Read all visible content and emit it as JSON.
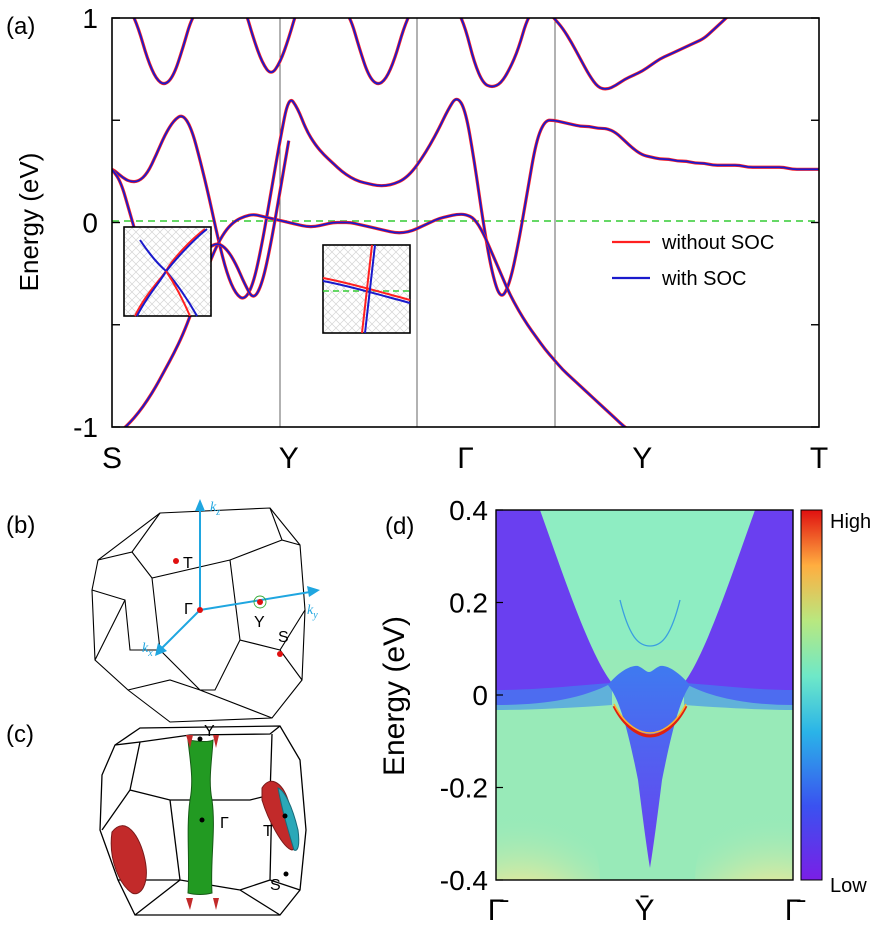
{
  "panel_labels": {
    "a": "(a)",
    "b": "(b)",
    "c": "(c)",
    "d": "(d)"
  },
  "colors": {
    "without_soc": "#ff2020",
    "with_soc": "#1a1acc",
    "fermi": "#33cc33",
    "axis_blue": "#1fa6e0",
    "hp_red": "#e01010",
    "fs_green": "#229a22",
    "fs_red": "#c22a2a",
    "fs_cyan": "#2aa8b8"
  },
  "chart_data": [
    {
      "panel": "a",
      "type": "line",
      "ylabel": "Energy (eV)",
      "ylim": [
        -1,
        1
      ],
      "yticks": [
        "1",
        "0",
        "-1"
      ],
      "kpath": [
        "S",
        "Y",
        "Γ",
        "Y",
        "T"
      ],
      "fermi_level": 0,
      "series": [
        {
          "name": "without SOC",
          "color": "#ff2020"
        },
        {
          "name": "with SOC",
          "color": "#1a1acc"
        }
      ],
      "bands": [
        {
          "id": "b1",
          "x": [
            0,
            0.02,
            0.06,
            0.1,
            0.15,
            0.2,
            0.25,
            0.3,
            0.35,
            0.4,
            0.45,
            0.5,
            0.55,
            0.6,
            0.65,
            0.7,
            0.75,
            0.8,
            0.85,
            0.9,
            0.95,
            1,
            1.05,
            1.1,
            1.15,
            1.2,
            1.25,
            1.3,
            1.35,
            1.4,
            1.45,
            1.5,
            1.55,
            1.6,
            1.65,
            1.7,
            1.75,
            1.8,
            1.85,
            1.9,
            1.95,
            2,
            2.05,
            2.1,
            2.15,
            2.2,
            2.25,
            2.3,
            2.35,
            2.4,
            2.45,
            2.5,
            2.55,
            2.6,
            2.65,
            2.7,
            2.75,
            2.8,
            2.85,
            2.9,
            2.95,
            3,
            3.05,
            3.1,
            3.15,
            3.2,
            3.25,
            3.3,
            3.35,
            3.4,
            3.45,
            3.5,
            3.55,
            3.6,
            3.65,
            3.7,
            3.75,
            3.8,
            3.85,
            3.9,
            3.95,
            4
          ],
          "y": [
            0.26,
            0.25,
            0.22,
            0.2,
            0.2,
            0.24,
            0.33,
            0.43,
            0.5,
            0.53,
            0.46,
            0.3,
            0.12,
            -0.08,
            -0.25,
            -0.35,
            -0.38,
            -0.3,
            -0.1,
            0.15,
            0.4,
            0.62,
            0.56,
            0.45,
            0.38,
            0.33,
            0.29,
            0.25,
            0.22,
            0.2,
            0.19,
            0.18,
            0.18,
            0.19,
            0.21,
            0.25,
            0.31,
            0.38,
            0.46,
            0.55,
            0.62,
            0.55,
            0.3,
            0.0,
            -0.25,
            -0.38,
            -0.3,
            -0.1,
            0.15,
            0.4,
            0.5,
            0.5,
            0.49,
            0.48,
            0.47,
            0.47,
            0.46,
            0.46,
            0.44,
            0.4,
            0.36,
            0.33,
            0.32,
            0.31,
            0.31,
            0.3,
            0.3,
            0.29,
            0.29,
            0.28,
            0.28,
            0.28,
            0.28,
            0.27,
            0.27,
            0.27,
            0.27,
            0.27,
            0.26,
            0.26,
            0.26,
            0.26
          ],
          "with_soc_only": false
        },
        {
          "id": "b2",
          "x": [
            0,
            0.05,
            0.1,
            0.15,
            0.2,
            0.25,
            0.3,
            0.35,
            0.4,
            0.45,
            0.5,
            0.55,
            0.6,
            0.65,
            0.7,
            0.75,
            0.8,
            0.85,
            0.9,
            0.95,
            1,
            1.05,
            1.1,
            1.15,
            1.2,
            1.25,
            1.3,
            1.35,
            1.4,
            1.45,
            1.5,
            1.55,
            1.6,
            1.65,
            1.7,
            1.75,
            1.8,
            1.85,
            1.9,
            1.95,
            2,
            2.05,
            2.1,
            2.15,
            2.2,
            2.25,
            2.3,
            2.35,
            2.4,
            2.45,
            2.5,
            2.55,
            2.6,
            2.65,
            2.7,
            2.75,
            2.8,
            2.85,
            2.9,
            2.95,
            3,
            3.05,
            3.1,
            3.15,
            3.2,
            3.25,
            3.3,
            3.35,
            3.4,
            3.45,
            3.5,
            3.55,
            3.6,
            3.65,
            3.7,
            3.75,
            3.8,
            3.85,
            3.9,
            3.95,
            4
          ],
          "y": [
            -1.05,
            -1.02,
            -0.98,
            -0.93,
            -0.87,
            -0.8,
            -0.72,
            -0.64,
            -0.55,
            -0.44,
            -0.32,
            -0.2,
            -0.1,
            -0.03,
            0.01,
            0.03,
            0.04,
            0.03,
            0.02,
            0.01,
            0.0,
            -0.01,
            -0.02,
            -0.02,
            -0.01,
            0.0,
            0.0,
            0.0,
            -0.01,
            -0.02,
            -0.03,
            -0.04,
            -0.05,
            -0.05,
            -0.04,
            -0.02,
            0.0,
            0.02,
            0.03,
            0.04,
            0.04,
            0.02,
            -0.05,
            -0.15,
            -0.25,
            -0.35,
            -0.43,
            -0.5,
            -0.56,
            -0.62,
            -0.67,
            -0.72,
            -0.76,
            -0.8,
            -0.84,
            -0.88,
            -0.92,
            -0.96,
            -1.0,
            -1.03,
            -1.05,
            -1.06,
            -1.07,
            -1.08,
            -1.08,
            -1.09,
            -1.09,
            -1.09,
            -1.1,
            -1.1,
            -1.1,
            -1.1,
            -1.1,
            -1.1,
            -1.1,
            -1.1,
            -1.1,
            -1.1,
            -1.1,
            -1.1,
            -1.1
          ],
          "with_soc_only": false
        },
        {
          "id": "b3",
          "x": [
            0,
            0.05,
            0.1,
            0.15,
            0.2,
            0.25,
            0.3,
            0.35,
            0.4,
            0.45,
            0.5,
            0.55,
            0.6,
            0.65,
            0.7,
            0.75,
            0.8,
            0.85,
            0.9,
            0.95,
            1
          ],
          "y": [
            0.26,
            0.2,
            0.05,
            -0.1,
            -0.2,
            -0.25,
            -0.27,
            -0.27,
            -0.25,
            -0.2,
            -0.15,
            -0.12,
            -0.1,
            -0.13,
            -0.2,
            -0.3,
            -0.38,
            -0.3,
            -0.1,
            0.15,
            0.4
          ],
          "with_soc_only": false
        },
        {
          "id": "b4",
          "x": [
            0.1,
            0.15,
            0.2,
            0.25,
            0.3,
            0.35,
            0.4,
            0.45,
            0.5,
            0.55,
            0.6,
            0.65,
            0.7,
            0.75,
            0.8,
            0.85,
            0.9,
            0.95,
            1.0,
            1.05,
            1.1,
            1.15,
            1.2,
            1.25,
            1.3,
            1.35,
            1.4,
            1.45,
            1.5,
            1.55,
            1.6,
            1.65,
            1.7,
            1.75,
            1.8,
            1.85,
            1.9,
            1.95,
            2.0,
            2.05,
            2.1,
            2.15,
            2.2,
            2.25,
            2.3,
            2.35,
            2.4,
            2.45,
            2.5,
            2.55,
            2.6,
            2.65,
            2.7,
            2.75,
            2.8,
            2.85,
            2.9,
            2.95,
            3.0,
            3.05,
            3.1,
            3.15,
            3.2,
            3.25,
            3.3,
            3.35,
            3.4,
            3.45,
            3.5,
            3.55,
            3.6,
            3.65,
            3.7,
            3.75,
            3.8,
            3.85,
            3.9,
            3.95,
            4.0
          ],
          "y": [
            1.05,
            0.95,
            0.8,
            0.7,
            0.67,
            0.72,
            0.85,
            1.0,
            1.05,
            1.05,
            1.05,
            1.05,
            1.05,
            1.05,
            0.9,
            0.78,
            0.72,
            0.78,
            0.9,
            1.05,
            1.05,
            1.05,
            1.05,
            1.05,
            1.05,
            1.0,
            0.85,
            0.72,
            0.67,
            0.7,
            0.8,
            0.95,
            1.05,
            1.05,
            1.05,
            1.05,
            1.05,
            1.05,
            0.95,
            0.78,
            0.68,
            0.66,
            0.68,
            0.75,
            0.85,
            1.0,
            1.05,
            1.05,
            1.0,
            0.95,
            0.88,
            0.8,
            0.72,
            0.66,
            0.65,
            0.67,
            0.7,
            0.72,
            0.74,
            0.77,
            0.8,
            0.82,
            0.84,
            0.86,
            0.88,
            0.9,
            0.94,
            0.98,
            1.02,
            1.05,
            1.05,
            1.05,
            1.05,
            1.05,
            1.05,
            1.05,
            1.05,
            1.05,
            1.05
          ],
          "with_soc_only": false
        }
      ]
    },
    {
      "panel": "d",
      "type": "heatmap",
      "ylabel": "Energy (eV)",
      "ylim": [
        -0.4,
        0.4
      ],
      "yticks": [
        "0.4",
        "0.2",
        "0",
        "-0.2",
        "-0.4"
      ],
      "xticks": [
        "Γ̄",
        "Ȳ",
        "Γ̄"
      ],
      "colorbar": {
        "high": "High",
        "low": "Low"
      }
    }
  ],
  "bz_b": {
    "axes": {
      "kz": "k",
      "kz_sub": "z",
      "ky": "k",
      "ky_sub": "y",
      "kx": "k",
      "kx_sub": "x"
    },
    "points": {
      "T": "T",
      "Gamma": "Γ",
      "Y": "Y",
      "S": "S"
    }
  },
  "bz_c": {
    "points": {
      "Y": "Y",
      "Gamma": "Γ",
      "T": "T",
      "S": "S"
    }
  }
}
